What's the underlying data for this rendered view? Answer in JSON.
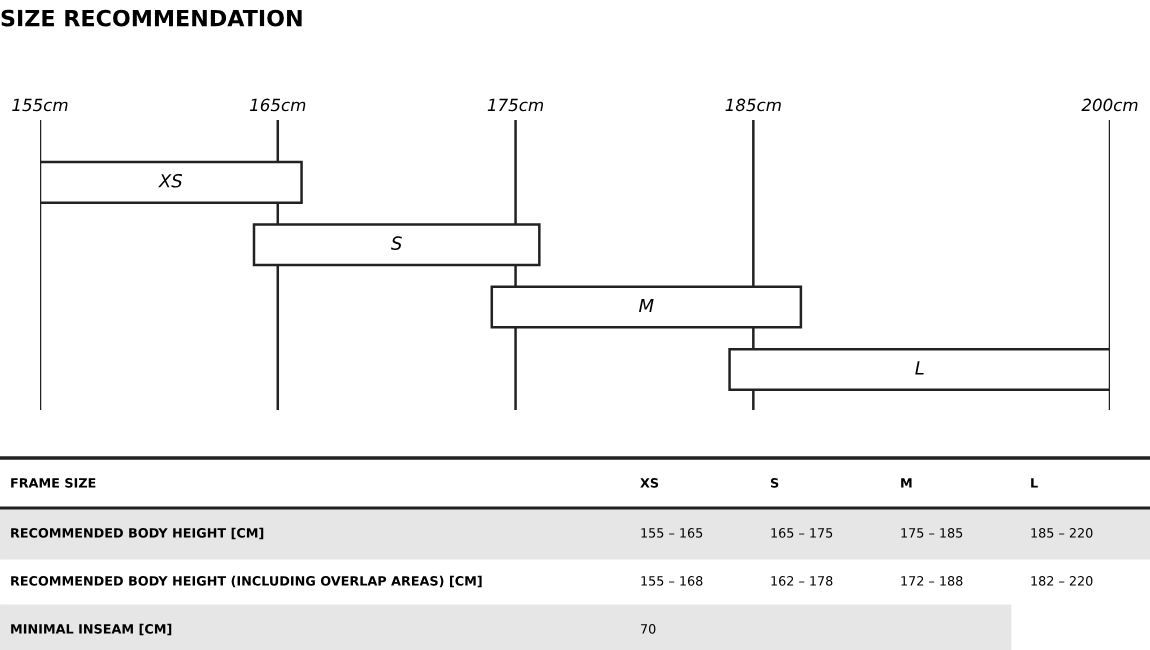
{
  "chart_data": [
    {
      "type": "bar",
      "orientation": "horizontal",
      "title": "SIZE RECOMMENDATION",
      "categories": [
        "XS",
        "S",
        "M",
        "L"
      ],
      "base": [
        155,
        164,
        174,
        184
      ],
      "values": [
        11,
        12,
        13,
        16
      ],
      "color": "#ffffff",
      "xlim": [
        155,
        200
      ],
      "xticks": [
        {
          "value": 155,
          "label": "155cm"
        },
        {
          "value": 165,
          "label": "165cm"
        },
        {
          "value": 175,
          "label": "175cm"
        },
        {
          "value": 185,
          "label": "185cm"
        },
        {
          "value": 200,
          "label": "200cm"
        }
      ],
      "grid": "x",
      "tick_labels": "x"
    },
    {
      "type": "other",
      "annotations": [
        "FRAME SIZE",
        "XS",
        "S",
        "M",
        "L",
        "RECOMMENDED BODY HEIGHT [CM]",
        "155 – 165",
        "165 – 175",
        "175 – 185",
        "185 – 220",
        "RECOMMENDED BODY HEIGHT (INCLUDING OVERLAP AREAS) [CM]",
        "155 – 168",
        "162 – 178",
        "172 – 188",
        "182 – 220",
        "MINIMAL INSEAM [CM]",
        "70"
      ]
    }
  ]
}
